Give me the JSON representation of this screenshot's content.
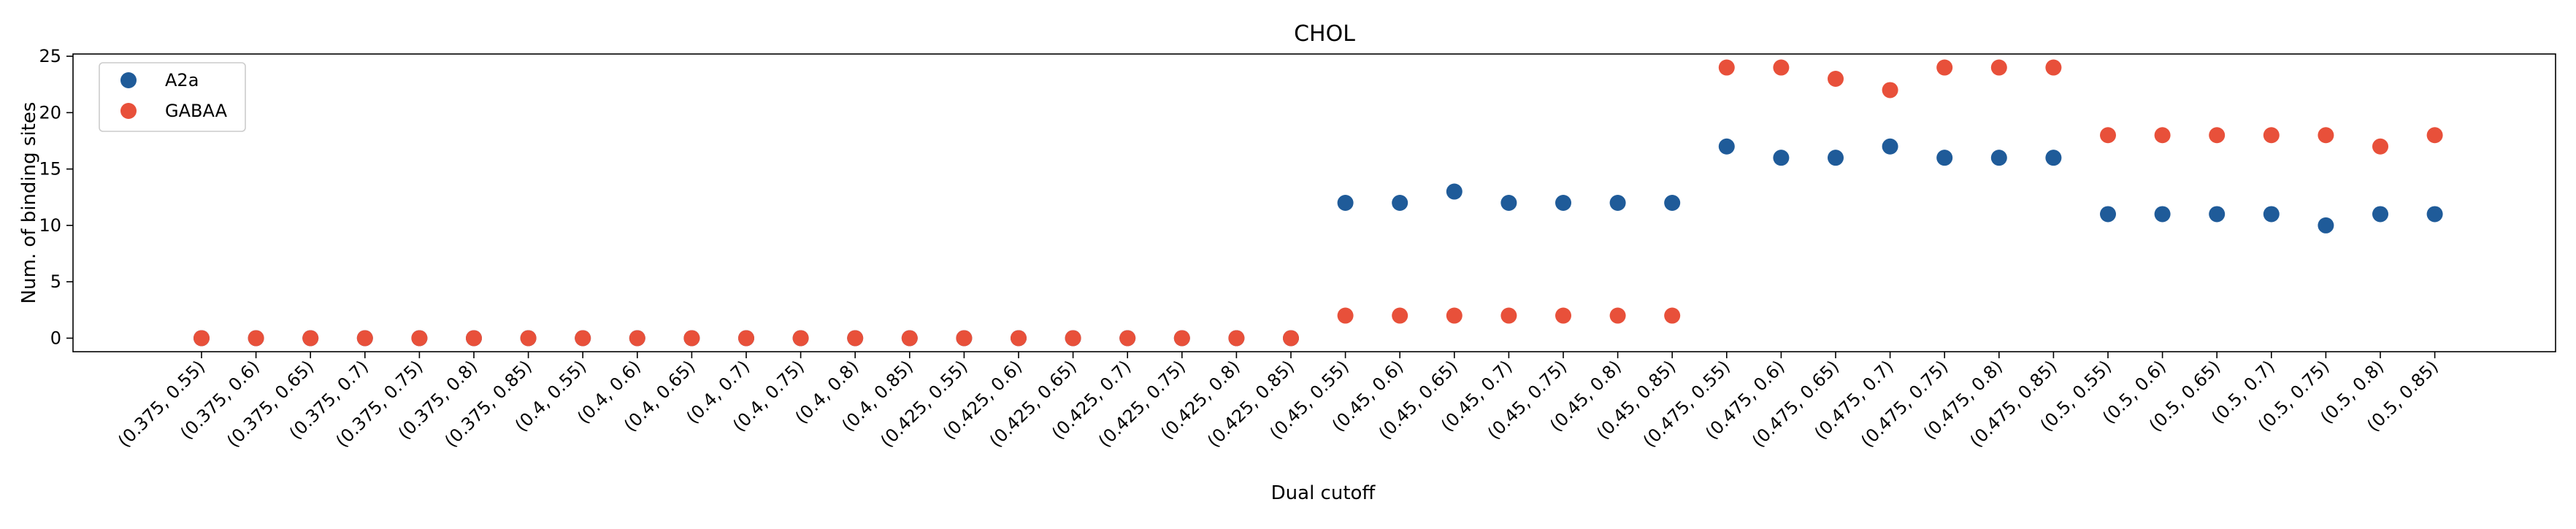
{
  "chart_data": {
    "type": "scatter",
    "title": "CHOL",
    "xlabel": "Dual cutoff",
    "ylabel": "Num. of binding sites",
    "ylim": [
      -1.2,
      25.2
    ],
    "yticks": [
      0,
      5,
      10,
      15,
      20,
      25
    ],
    "grid": false,
    "legend_position": "top-left",
    "categories": [
      "(0.375, 0.55)",
      "(0.375, 0.6)",
      "(0.375, 0.65)",
      "(0.375, 0.7)",
      "(0.375, 0.75)",
      "(0.375, 0.8)",
      "(0.375, 0.85)",
      "(0.4, 0.55)",
      "(0.4, 0.6)",
      "(0.4, 0.65)",
      "(0.4, 0.7)",
      "(0.4, 0.75)",
      "(0.4, 0.8)",
      "(0.4, 0.85)",
      "(0.425, 0.55)",
      "(0.425, 0.6)",
      "(0.425, 0.65)",
      "(0.425, 0.7)",
      "(0.425, 0.75)",
      "(0.425, 0.8)",
      "(0.425, 0.85)",
      "(0.45, 0.55)",
      "(0.45, 0.6)",
      "(0.45, 0.65)",
      "(0.45, 0.7)",
      "(0.45, 0.75)",
      "(0.45, 0.8)",
      "(0.45, 0.85)",
      "(0.475, 0.55)",
      "(0.475, 0.6)",
      "(0.475, 0.65)",
      "(0.475, 0.7)",
      "(0.475, 0.75)",
      "(0.475, 0.8)",
      "(0.475, 0.85)",
      "(0.5, 0.55)",
      "(0.5, 0.6)",
      "(0.5, 0.65)",
      "(0.5, 0.7)",
      "(0.5, 0.75)",
      "(0.5, 0.8)",
      "(0.5, 0.85)"
    ],
    "series": [
      {
        "name": "A2a",
        "color": "#1f5b99",
        "values": [
          0,
          0,
          0,
          0,
          0,
          0,
          0,
          0,
          0,
          0,
          0,
          0,
          0,
          0,
          0,
          0,
          0,
          0,
          0,
          0,
          0,
          12,
          12,
          13,
          12,
          12,
          12,
          12,
          17,
          16,
          16,
          17,
          16,
          16,
          16,
          11,
          11,
          11,
          11,
          10,
          11,
          11
        ]
      },
      {
        "name": "GABAA",
        "color": "#e8503a",
        "values": [
          0,
          0,
          0,
          0,
          0,
          0,
          0,
          0,
          0,
          0,
          0,
          0,
          0,
          0,
          0,
          0,
          0,
          0,
          0,
          0,
          0,
          2,
          2,
          2,
          2,
          2,
          2,
          2,
          24,
          24,
          23,
          22,
          24,
          24,
          24,
          18,
          18,
          18,
          18,
          18,
          17,
          18
        ]
      }
    ]
  }
}
